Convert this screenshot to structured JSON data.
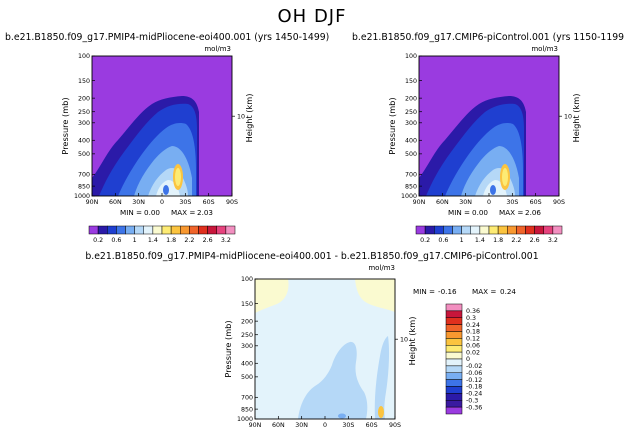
{
  "chart_data": {
    "title": "OH DJF",
    "panels": [
      {
        "id": "top-left",
        "type": "heatmap",
        "title": "b.e21.B1850.f09_g17.PMIP4-midPliocene-eoi400.001 (yrs 1450-1499)",
        "units": "mol/m3",
        "ylabel": "Pressure (mb)",
        "ylabel_right": "Height (km)",
        "x_ticks": [
          "90N",
          "60N",
          "30N",
          "0",
          "30S",
          "60S",
          "90S"
        ],
        "y_ticks": [
          "100",
          "150",
          "200",
          "250",
          "300",
          "400",
          "500",
          "700",
          "850",
          "1000"
        ],
        "y_ticks_right": [
          "10"
        ],
        "min_label": "MIN =",
        "min": "0.00",
        "max_label": "MAX =",
        "max": "2.03"
      },
      {
        "id": "top-right",
        "type": "heatmap",
        "title": "b.e21.B1850.f09_g17.CMIP6-piControl.001 (yrs 1150-1199)",
        "units": "mol/m3",
        "ylabel": "Pressure (mb)",
        "ylabel_right": "Height (km)",
        "x_ticks": [
          "90N",
          "60N",
          "30N",
          "0",
          "30S",
          "60S",
          "90S"
        ],
        "y_ticks": [
          "100",
          "150",
          "200",
          "250",
          "300",
          "400",
          "500",
          "700",
          "850",
          "1000"
        ],
        "y_ticks_right": [
          "10"
        ],
        "min_label": "MIN =",
        "min": "0.00",
        "max_label": "MAX =",
        "max": "2.06"
      },
      {
        "id": "bottom-diff",
        "type": "heatmap",
        "title": "b.e21.B1850.f09_g17.PMIP4-midPliocene-eoi400.001 - b.e21.B1850.f09_g17.CMIP6-piControl.001",
        "units": "mol/m3",
        "ylabel": "Pressure (mb)",
        "ylabel_right": "Height (km)",
        "x_ticks": [
          "90N",
          "60N",
          "30N",
          "0",
          "30S",
          "60S",
          "90S"
        ],
        "y_ticks": [
          "100",
          "150",
          "200",
          "250",
          "300",
          "400",
          "500",
          "700",
          "850",
          "1000"
        ],
        "y_ticks_right": [
          "10"
        ],
        "min_label": "MIN =",
        "min": "-0.16",
        "max_label": "MAX =",
        "max": "0.24"
      }
    ],
    "colorbar_top": {
      "labels": [
        "0.2",
        "0.6",
        "1",
        "1.4",
        "1.8",
        "2.2",
        "2.6",
        "3.2"
      ],
      "colors": [
        "#9a3be0",
        "#2b1aa8",
        "#1f3fd0",
        "#3d74e8",
        "#78aef2",
        "#b5d8f7",
        "#e3f3fb",
        "#fafad0",
        "#fdeb74",
        "#fbc43f",
        "#f89830",
        "#f0642a",
        "#e0301e",
        "#c8163b",
        "#e6427d",
        "#f28fc0"
      ]
    },
    "colorbar_diff": {
      "labels": [
        "0.36",
        "0.3",
        "0.24",
        "0.18",
        "0.12",
        "0.06",
        "0.02",
        "0",
        "-0.02",
        "-0.06",
        "-0.12",
        "-0.18",
        "-0.24",
        "-0.3",
        "-0.36"
      ],
      "colors": [
        "#f28fc0",
        "#c8163b",
        "#e0301e",
        "#f0642a",
        "#f89830",
        "#fbc43f",
        "#fdeb74",
        "#fafad0",
        "#e3f3fb",
        "#b5d8f7",
        "#78aef2",
        "#3d74e8",
        "#1f3fd0",
        "#2b1aa8",
        "#3a1aa0",
        "#9a3be0"
      ]
    }
  }
}
